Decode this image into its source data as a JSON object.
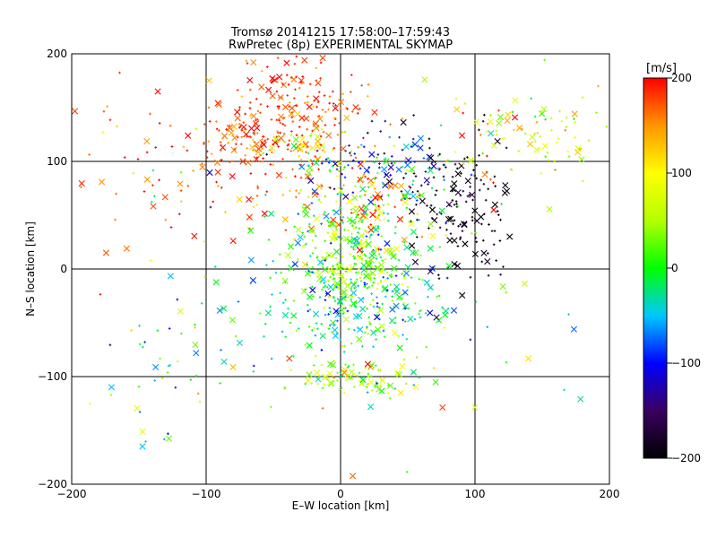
{
  "chart_data": {
    "type": "scatter",
    "title": "Tromsø 20141215 17:58:00–17:59:43",
    "subtitle": "RwPretec (8p) EXPERIMENTAL SKYMAP",
    "xlabel": "E–W location [km]",
    "ylabel": "N–S location [km]",
    "xlim": [
      -200,
      200
    ],
    "ylim": [
      -200,
      200
    ],
    "xticks": [
      -200,
      -100,
      0,
      100,
      200
    ],
    "yticks": [
      -200,
      -100,
      0,
      100,
      200
    ],
    "grid": true,
    "marker_styles": [
      "x (large)",
      "+ (small dot)"
    ],
    "colorbar": {
      "label": "[m/s]",
      "range": [
        -200,
        200
      ],
      "ticks": [
        200,
        100,
        0,
        -100,
        -200
      ],
      "colormap": "rainbow: black (-200), blue (-100), cyan/green (0), yellow (100), red (200)",
      "colors": [
        "#000000",
        "#3a0060",
        "#0000ff",
        "#00c8ff",
        "#00ff00",
        "#b4ff00",
        "#ffff00",
        "#ff9600",
        "#ff0000"
      ]
    },
    "clusters": [
      {
        "x": -35,
        "y": 150,
        "sx": 28,
        "sy": 28,
        "n": 180,
        "v": 180,
        "sv": 25
      },
      {
        "x": -70,
        "y": 120,
        "sx": 20,
        "sy": 12,
        "n": 90,
        "v": 175,
        "sv": 25
      },
      {
        "x": -60,
        "y": 75,
        "sx": 60,
        "sy": 25,
        "n": 70,
        "v": 170,
        "sv": 40
      },
      {
        "x": -20,
        "y": 115,
        "sx": 18,
        "sy": 15,
        "n": 60,
        "v": 90,
        "sv": 60
      },
      {
        "x": 30,
        "y": 95,
        "sx": 30,
        "sy": 18,
        "n": 90,
        "v": -90,
        "sv": 45
      },
      {
        "x": 90,
        "y": 55,
        "sx": 20,
        "sy": 30,
        "n": 140,
        "v": -190,
        "sv": 15
      },
      {
        "x": 140,
        "y": 130,
        "sx": 30,
        "sy": 22,
        "n": 90,
        "v": 90,
        "sv": 50
      },
      {
        "x": 10,
        "y": 40,
        "sx": 30,
        "sy": 30,
        "n": 180,
        "v": 5,
        "sv": 50
      },
      {
        "x": 20,
        "y": 60,
        "sx": 20,
        "sy": 15,
        "n": 60,
        "v": 160,
        "sv": 40
      },
      {
        "x": 10,
        "y": 0,
        "sx": 20,
        "sy": 20,
        "n": 170,
        "v": 30,
        "sv": 35
      },
      {
        "x": 10,
        "y": -35,
        "sx": 40,
        "sy": 25,
        "n": 230,
        "v": -20,
        "sv": 45
      },
      {
        "x": 15,
        "y": -100,
        "sx": 25,
        "sy": 8,
        "n": 90,
        "v": 40,
        "sv": 45
      },
      {
        "x": -130,
        "y": -85,
        "sx": 30,
        "sy": 40,
        "n": 40,
        "v": 0,
        "sv": 70
      },
      {
        "x": -150,
        "y": 100,
        "sx": 40,
        "sy": 40,
        "n": 35,
        "v": 180,
        "sv": 30
      },
      {
        "x": 0,
        "y": 0,
        "sx": 110,
        "sy": 100,
        "n": 120,
        "v": 30,
        "sv": 110
      }
    ],
    "colorbar_ticklabels": [
      "200",
      "100",
      "0",
      "−100",
      "−200"
    ]
  }
}
